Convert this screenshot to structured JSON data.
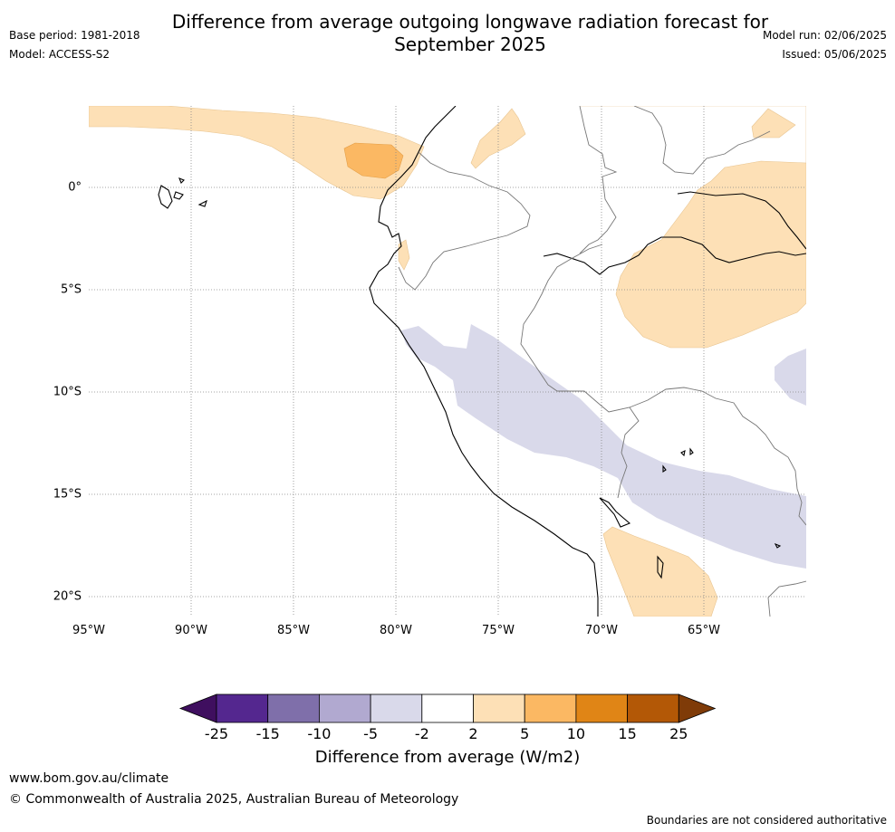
{
  "title": "Difference from average outgoing longwave radiation forecast for September 2025",
  "header_left": {
    "base_period": "Base period: 1981-2018",
    "model": "Model: ACCESS-S2"
  },
  "header_right": {
    "model_run": "Model run: 02/06/2025",
    "issued": "Issued: 05/06/2025"
  },
  "map": {
    "lat_labels": [
      "0°",
      "5°S",
      "10°S",
      "15°S",
      "20°S"
    ],
    "lon_labels": [
      "95°W",
      "90°W",
      "85°W",
      "80°W",
      "75°W",
      "70°W",
      "65°W"
    ]
  },
  "colorbar": {
    "ticks": [
      "-25",
      "-15",
      "-10",
      "-5",
      "-2",
      "2",
      "5",
      "10",
      "15",
      "25"
    ],
    "colors": [
      "#3f0f5f",
      "#54278f",
      "#7f6faa",
      "#b1a9d0",
      "#d9d9ea",
      "#ffffff",
      "#fde0b6",
      "#fbb863",
      "#e08516",
      "#b35806",
      "#7f3b08"
    ],
    "label": "Difference from average (W/m2)"
  },
  "footer": {
    "website": "www.bom.gov.au/climate",
    "copyright": "© Commonwealth of Australia 2025, Australian Bureau of Meteorology",
    "disclaimer": "Boundaries are not considered authoritative"
  },
  "legend_colors": {
    "positive_light": "#fde0b6",
    "positive_mid": "#fbb863",
    "negative_light": "#d9d9ea"
  }
}
